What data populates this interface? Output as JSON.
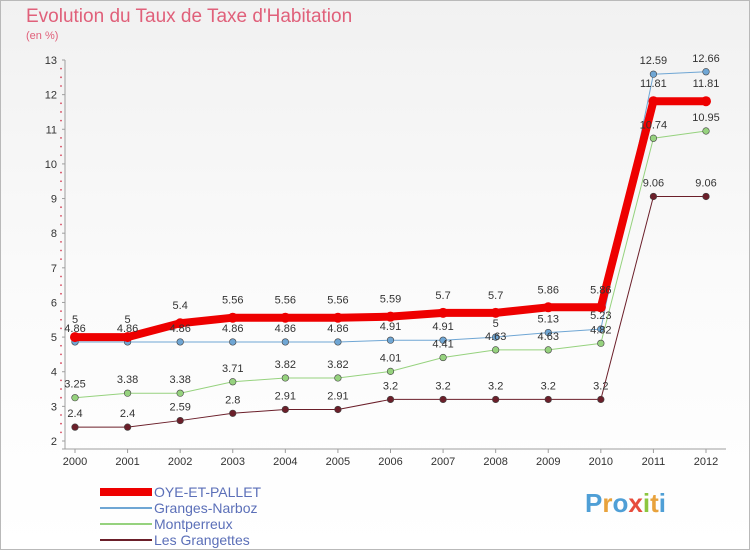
{
  "title": "Evolution du Taux de Taxe d'Habitation",
  "subtitle": "(en %)",
  "colors": {
    "title": "#e0607a",
    "legend_text": "#5b6fb8",
    "axis_line": "#9e9e9e",
    "grid": "#d5d5d5"
  },
  "brand": {
    "letters": [
      {
        "char": "P",
        "color": "#4f9fd6"
      },
      {
        "char": "r",
        "color": "#e8a23c"
      },
      {
        "char": "o",
        "color": "#4f9fd6"
      },
      {
        "char": "x",
        "color": "#e74c3c"
      },
      {
        "char": "i",
        "color": "#8cc63f"
      },
      {
        "char": "t",
        "color": "#e8a23c"
      },
      {
        "char": "i",
        "color": "#4f9fd6"
      }
    ]
  },
  "chart_data": {
    "type": "line",
    "title": "Evolution du Taux de Taxe d'Habitation",
    "subtitle": "(en %)",
    "x": [
      "2000",
      "2001",
      "2002",
      "2003",
      "2004",
      "2005",
      "2006",
      "2007",
      "2008",
      "2009",
      "2010",
      "2011",
      "2012"
    ],
    "ylim": [
      2,
      13
    ],
    "yticks": [
      "2",
      "3",
      "4",
      "5",
      "6",
      "7",
      "8",
      "9",
      "10",
      "11",
      "12",
      "13"
    ],
    "grid": false,
    "legend_position": "bottom-left",
    "series": [
      {
        "name": "Les Grangettes",
        "color": "#6b1f2a",
        "width": 1,
        "values": [
          2.4,
          2.4,
          2.59,
          2.8,
          2.91,
          2.91,
          3.2,
          3.2,
          3.2,
          3.2,
          3.2,
          9.06,
          9.06
        ],
        "labels": [
          "2.4",
          "2.4",
          "2.59",
          "2.8",
          "2.91",
          "2.91",
          "3.2",
          "3.2",
          "3.2",
          "3.2",
          "3.2",
          "9.06",
          "9.06"
        ]
      },
      {
        "name": "Montperreux",
        "color": "#96d27e",
        "width": 1,
        "values": [
          3.25,
          3.38,
          3.38,
          3.71,
          3.82,
          3.82,
          4.01,
          4.41,
          4.63,
          4.63,
          4.82,
          10.74,
          10.95
        ],
        "labels": [
          "3.25",
          "3.38",
          "3.38",
          "3.71",
          "3.82",
          "3.82",
          "4.01",
          "4.41",
          "4.63",
          "4.63",
          "4.82",
          "10.74",
          "10.95"
        ]
      },
      {
        "name": "Granges-Narboz",
        "color": "#6fa6d4",
        "width": 1,
        "values": [
          4.86,
          4.86,
          4.86,
          4.86,
          4.86,
          4.86,
          4.91,
          4.91,
          5,
          5.13,
          5.23,
          12.59,
          12.66
        ],
        "labels": [
          "4.86",
          "4.86",
          "4.86",
          "4.86",
          "4.86",
          "4.86",
          "4.91",
          "4.91",
          "5",
          "5.13",
          "5.23",
          "12.59",
          "12.66"
        ]
      },
      {
        "name": "OYE-ET-PALLET",
        "color": "#ee0000",
        "width": 8,
        "values": [
          5,
          5,
          5.4,
          5.56,
          5.56,
          5.56,
          5.59,
          5.7,
          5.7,
          5.86,
          5.86,
          11.81,
          11.81
        ],
        "labels": [
          "5",
          "5",
          "5.4",
          "5.56",
          "5.56",
          "5.56",
          "5.59",
          "5.7",
          "5.7",
          "5.86",
          "5.86",
          "11.81",
          "11.81"
        ]
      }
    ],
    "legend": [
      "OYE-ET-PALLET",
      "Granges-Narboz",
      "Montperreux",
      "Les Grangettes"
    ]
  }
}
